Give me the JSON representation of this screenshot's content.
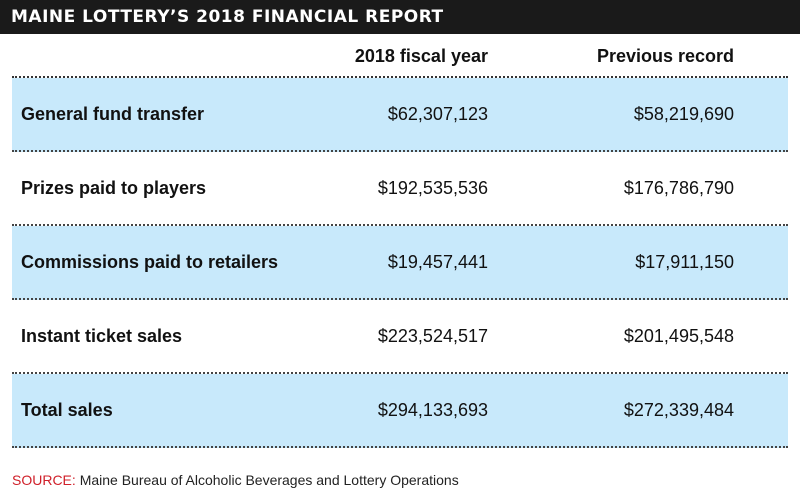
{
  "chart_data": {
    "type": "table",
    "title": "MAINE LOTTERY’S 2018 FINANCIAL REPORT",
    "columns": [
      "",
      "2018 fiscal year",
      "Previous record"
    ],
    "rows": [
      {
        "label": "General fund transfer",
        "fy2018": "$62,307,123",
        "previous": "$58,219,690",
        "shaded": true
      },
      {
        "label": "Prizes paid to players",
        "fy2018": "$192,535,536",
        "previous": "$176,786,790",
        "shaded": false
      },
      {
        "label": "Commissions paid to retailers",
        "fy2018": "$19,457,441",
        "previous": "$17,911,150",
        "shaded": true
      },
      {
        "label": "Instant ticket sales",
        "fy2018": "$223,524,517",
        "previous": "$201,495,548",
        "shaded": false
      },
      {
        "label": "Total sales",
        "fy2018": "$294,133,693",
        "previous": "$272,339,484",
        "shaded": true
      }
    ],
    "source_label": "SOURCE:",
    "source_text": "Maine Bureau of Alcoholic Beverages and Lottery Operations"
  },
  "colors": {
    "title_bg": "#1a1a1a",
    "row_shade": "#c8e9fb",
    "source_label": "#d0202a"
  }
}
